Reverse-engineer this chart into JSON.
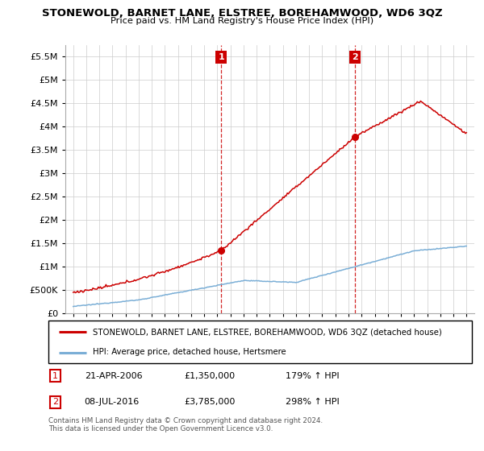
{
  "title": "STONEWOLD, BARNET LANE, ELSTREE, BOREHAMWOOD, WD6 3QZ",
  "subtitle": "Price paid vs. HM Land Registry's House Price Index (HPI)",
  "legend_house": "STONEWOLD, BARNET LANE, ELSTREE, BOREHAMWOOD, WD6 3QZ (detached house)",
  "legend_hpi": "HPI: Average price, detached house, Hertsmere",
  "annotation1_label": "1",
  "annotation1_date": "21-APR-2006",
  "annotation1_price": "£1,350,000",
  "annotation1_hpi": "179% ↑ HPI",
  "annotation2_label": "2",
  "annotation2_date": "08-JUL-2016",
  "annotation2_price": "£3,785,000",
  "annotation2_hpi": "298% ↑ HPI",
  "footer": "Contains HM Land Registry data © Crown copyright and database right 2024.\nThis data is licensed under the Open Government Licence v3.0.",
  "house_color": "#cc0000",
  "hpi_color": "#7aaed6",
  "vline_color": "#cc0000",
  "annotation_box_color": "#cc0000",
  "ylim_max": 5750000,
  "ylim_min": 0,
  "year_start": 1995,
  "year_end": 2025,
  "sale1_year": 2006.3,
  "sale1_price": 1350000,
  "sale2_year": 2016.5,
  "sale2_price": 3785000,
  "bg_color": "#ffffff",
  "grid_color": "#cccccc"
}
